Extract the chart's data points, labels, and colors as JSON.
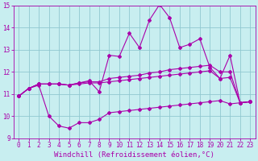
{
  "xlabel": "Windchill (Refroidissement éolien,°C)",
  "xlim": [
    -0.5,
    23.5
  ],
  "ylim": [
    9,
    15
  ],
  "yticks": [
    9,
    10,
    11,
    12,
    13,
    14,
    15
  ],
  "xticks": [
    0,
    1,
    2,
    3,
    4,
    5,
    6,
    7,
    8,
    9,
    10,
    11,
    12,
    13,
    14,
    15,
    16,
    17,
    18,
    19,
    20,
    21,
    22,
    23
  ],
  "background_color": "#c8eef0",
  "grid_color": "#90c8d0",
  "line_color": "#aa00aa",
  "line1_x": [
    0,
    1,
    2,
    3,
    4,
    5,
    6,
    7,
    8,
    9,
    10,
    11,
    12,
    13,
    14,
    15,
    16,
    17,
    18,
    19,
    20,
    21,
    22,
    23
  ],
  "line1_y": [
    10.9,
    11.25,
    11.4,
    10.0,
    9.55,
    9.45,
    9.7,
    9.7,
    9.85,
    10.15,
    10.2,
    10.25,
    10.3,
    10.35,
    10.4,
    10.45,
    10.5,
    10.55,
    10.6,
    10.65,
    10.7,
    10.55,
    10.6,
    10.65
  ],
  "line2_x": [
    0,
    1,
    2,
    3,
    4,
    5,
    6,
    7,
    8,
    9,
    10,
    11,
    12,
    13,
    14,
    15,
    16,
    17,
    18,
    19,
    20,
    21,
    22,
    23
  ],
  "line2_y": [
    10.9,
    11.25,
    11.45,
    11.45,
    11.45,
    11.4,
    11.45,
    11.5,
    11.5,
    11.55,
    11.6,
    11.65,
    11.7,
    11.75,
    11.8,
    11.85,
    11.9,
    11.95,
    12.0,
    12.05,
    11.7,
    11.75,
    10.6,
    10.65
  ],
  "line3_x": [
    0,
    1,
    2,
    3,
    4,
    5,
    6,
    7,
    8,
    9,
    10,
    11,
    12,
    13,
    14,
    15,
    16,
    17,
    18,
    19,
    20,
    21,
    22,
    23
  ],
  "line3_y": [
    10.9,
    11.25,
    11.45,
    11.45,
    11.45,
    11.4,
    11.5,
    11.55,
    11.55,
    11.7,
    11.75,
    11.8,
    11.85,
    11.95,
    12.0,
    12.1,
    12.15,
    12.2,
    12.25,
    12.3,
    12.0,
    12.0,
    10.6,
    10.65
  ],
  "line4_x": [
    0,
    1,
    2,
    3,
    4,
    5,
    6,
    7,
    8,
    9,
    10,
    11,
    12,
    13,
    14,
    15,
    16,
    17,
    18,
    19,
    20,
    21,
    22,
    23
  ],
  "line4_y": [
    10.9,
    11.25,
    11.45,
    11.45,
    11.45,
    11.4,
    11.5,
    11.6,
    11.1,
    12.75,
    12.7,
    13.75,
    13.1,
    14.35,
    15.05,
    14.45,
    13.1,
    13.25,
    13.5,
    12.2,
    11.7,
    12.75,
    10.6,
    10.65
  ],
  "marker": "D",
  "marker_size": 2.0,
  "linewidth": 0.8,
  "tick_fontsize": 5.5,
  "label_fontsize": 6.5
}
